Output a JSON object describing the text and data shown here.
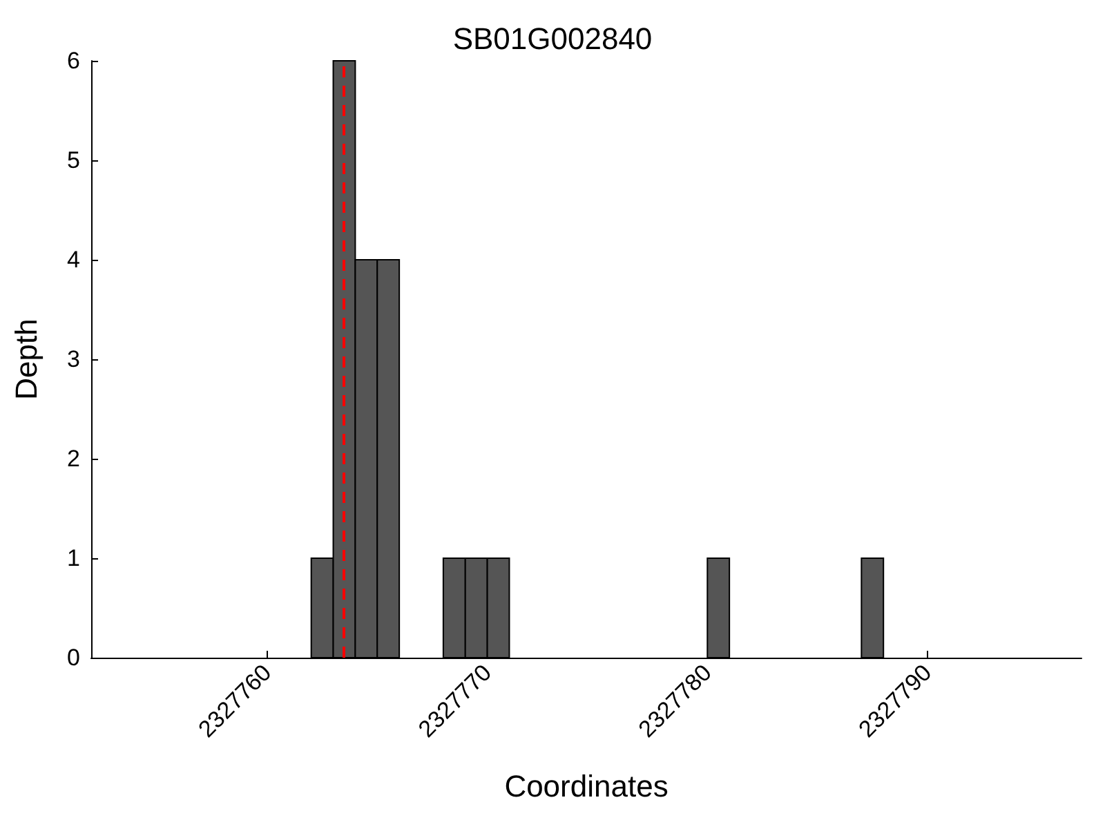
{
  "chart_data": {
    "type": "histogram",
    "title": "SB01G002840",
    "xlabel": "Coordinates",
    "ylabel": "Depth",
    "color": "#555555",
    "bins": [
      2327762,
      2327763,
      2327764,
      2327765,
      2327766,
      2327767,
      2327768,
      2327769,
      2327770,
      2327771,
      2327772,
      2327773,
      2327774,
      2327775,
      2327776,
      2327777,
      2327778,
      2327779,
      2327780,
      2327781,
      2327782,
      2327783,
      2327784,
      2327785,
      2327786,
      2327787,
      2327788
    ],
    "values": [
      1,
      6,
      4,
      4,
      0,
      0,
      1,
      1,
      1,
      0,
      0,
      0,
      0,
      0,
      0,
      0,
      0,
      0,
      1,
      0,
      0,
      0,
      0,
      0,
      0,
      1
    ],
    "xlim": [
      2327752,
      2327797
    ],
    "xticks": [
      2327760,
      2327770,
      2327780,
      2327790
    ],
    "ylim": [
      0,
      6
    ],
    "yticks": [
      0,
      1,
      2,
      3,
      4,
      5,
      6
    ],
    "grid": false,
    "ref_lines": [
      {
        "axis": "x",
        "value": 2327763.5,
        "color": "#ff0000",
        "line_style": "dashed"
      }
    ]
  }
}
